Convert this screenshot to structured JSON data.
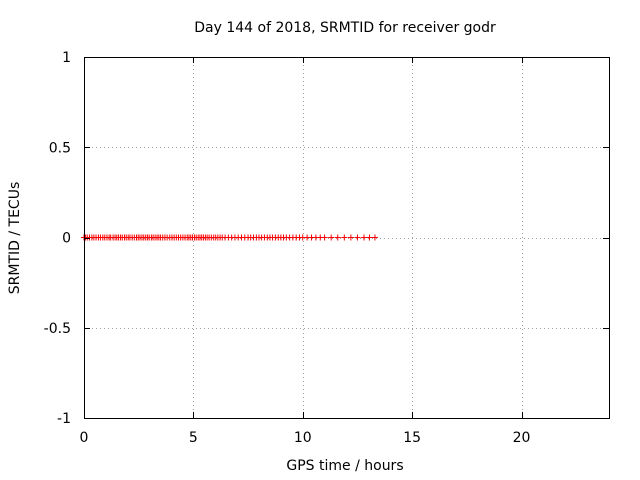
{
  "chart_data": {
    "type": "scatter",
    "title": "Day 144 of 2018, SRMTID for receiver godr",
    "xlabel": "GPS time / hours",
    "ylabel": "SRMTID / TECUs",
    "xlim": [
      0,
      24
    ],
    "ylim": [
      -1,
      1
    ],
    "xticks": [
      0,
      5,
      10,
      15,
      20
    ],
    "yticks": [
      -1,
      -0.5,
      0,
      0.5,
      1
    ],
    "xtick_labels": [
      "0",
      "5",
      "10",
      "15",
      "20"
    ],
    "ytick_labels": [
      "-1",
      "-0.5",
      "0",
      "0.5",
      "1"
    ],
    "grid": true,
    "marker": "+",
    "series": [
      {
        "name": "SRMTID",
        "color": "#ff0000",
        "x": [
          0.0,
          0.07,
          0.15,
          0.25,
          0.36,
          0.45,
          0.55,
          0.66,
          0.75,
          0.86,
          0.95,
          1.05,
          1.15,
          1.22,
          1.33,
          1.42,
          1.5,
          1.58,
          1.67,
          1.75,
          1.85,
          1.93,
          2.02,
          2.1,
          2.2,
          2.3,
          2.4,
          2.48,
          2.56,
          2.65,
          2.73,
          2.82,
          2.9,
          2.98,
          3.08,
          3.16,
          3.25,
          3.34,
          3.42,
          3.5,
          3.6,
          3.7,
          3.8,
          3.92,
          4.02,
          4.12,
          4.22,
          4.32,
          4.42,
          4.52,
          4.62,
          4.72,
          4.8,
          4.88,
          4.96,
          5.05,
          5.13,
          5.22,
          5.3,
          5.38,
          5.46,
          5.55,
          5.63,
          5.72,
          5.82,
          5.93,
          6.02,
          6.12,
          6.22,
          6.32,
          6.45,
          6.6,
          6.75,
          6.9,
          7.05,
          7.2,
          7.35,
          7.5,
          7.62,
          7.75,
          7.88,
          8.0,
          8.12,
          8.25,
          8.38,
          8.5,
          8.62,
          8.75,
          8.88,
          9.0,
          9.12,
          9.25,
          9.4,
          9.55,
          9.7,
          9.85,
          10.0,
          10.2,
          10.4,
          10.6,
          10.8,
          11.0,
          11.3,
          11.6,
          11.9,
          12.2,
          12.5,
          12.8,
          13.05,
          13.3
        ],
        "y": [
          0,
          0,
          0,
          0,
          0,
          0,
          0,
          0,
          0,
          0,
          0,
          0,
          0,
          0,
          0,
          0,
          0,
          0,
          0,
          0,
          0,
          0,
          0,
          0,
          0,
          0,
          0,
          0,
          0,
          0,
          0,
          0,
          0,
          0,
          0,
          0,
          0,
          0,
          0,
          0,
          0,
          0,
          0,
          0,
          0,
          0,
          0,
          0,
          0,
          0,
          0,
          0,
          0,
          0,
          0,
          0,
          0,
          0,
          0,
          0,
          0,
          0,
          0,
          0,
          0,
          0,
          0,
          0,
          0,
          0,
          0,
          0,
          0,
          0,
          0,
          0,
          0,
          0,
          0,
          0,
          0,
          0,
          0,
          0,
          0,
          0,
          0,
          0,
          0,
          0,
          0,
          0,
          0,
          0,
          0,
          0,
          0,
          0,
          0,
          0,
          0,
          0,
          0,
          0,
          0,
          0,
          0,
          0,
          0,
          0
        ]
      }
    ]
  }
}
